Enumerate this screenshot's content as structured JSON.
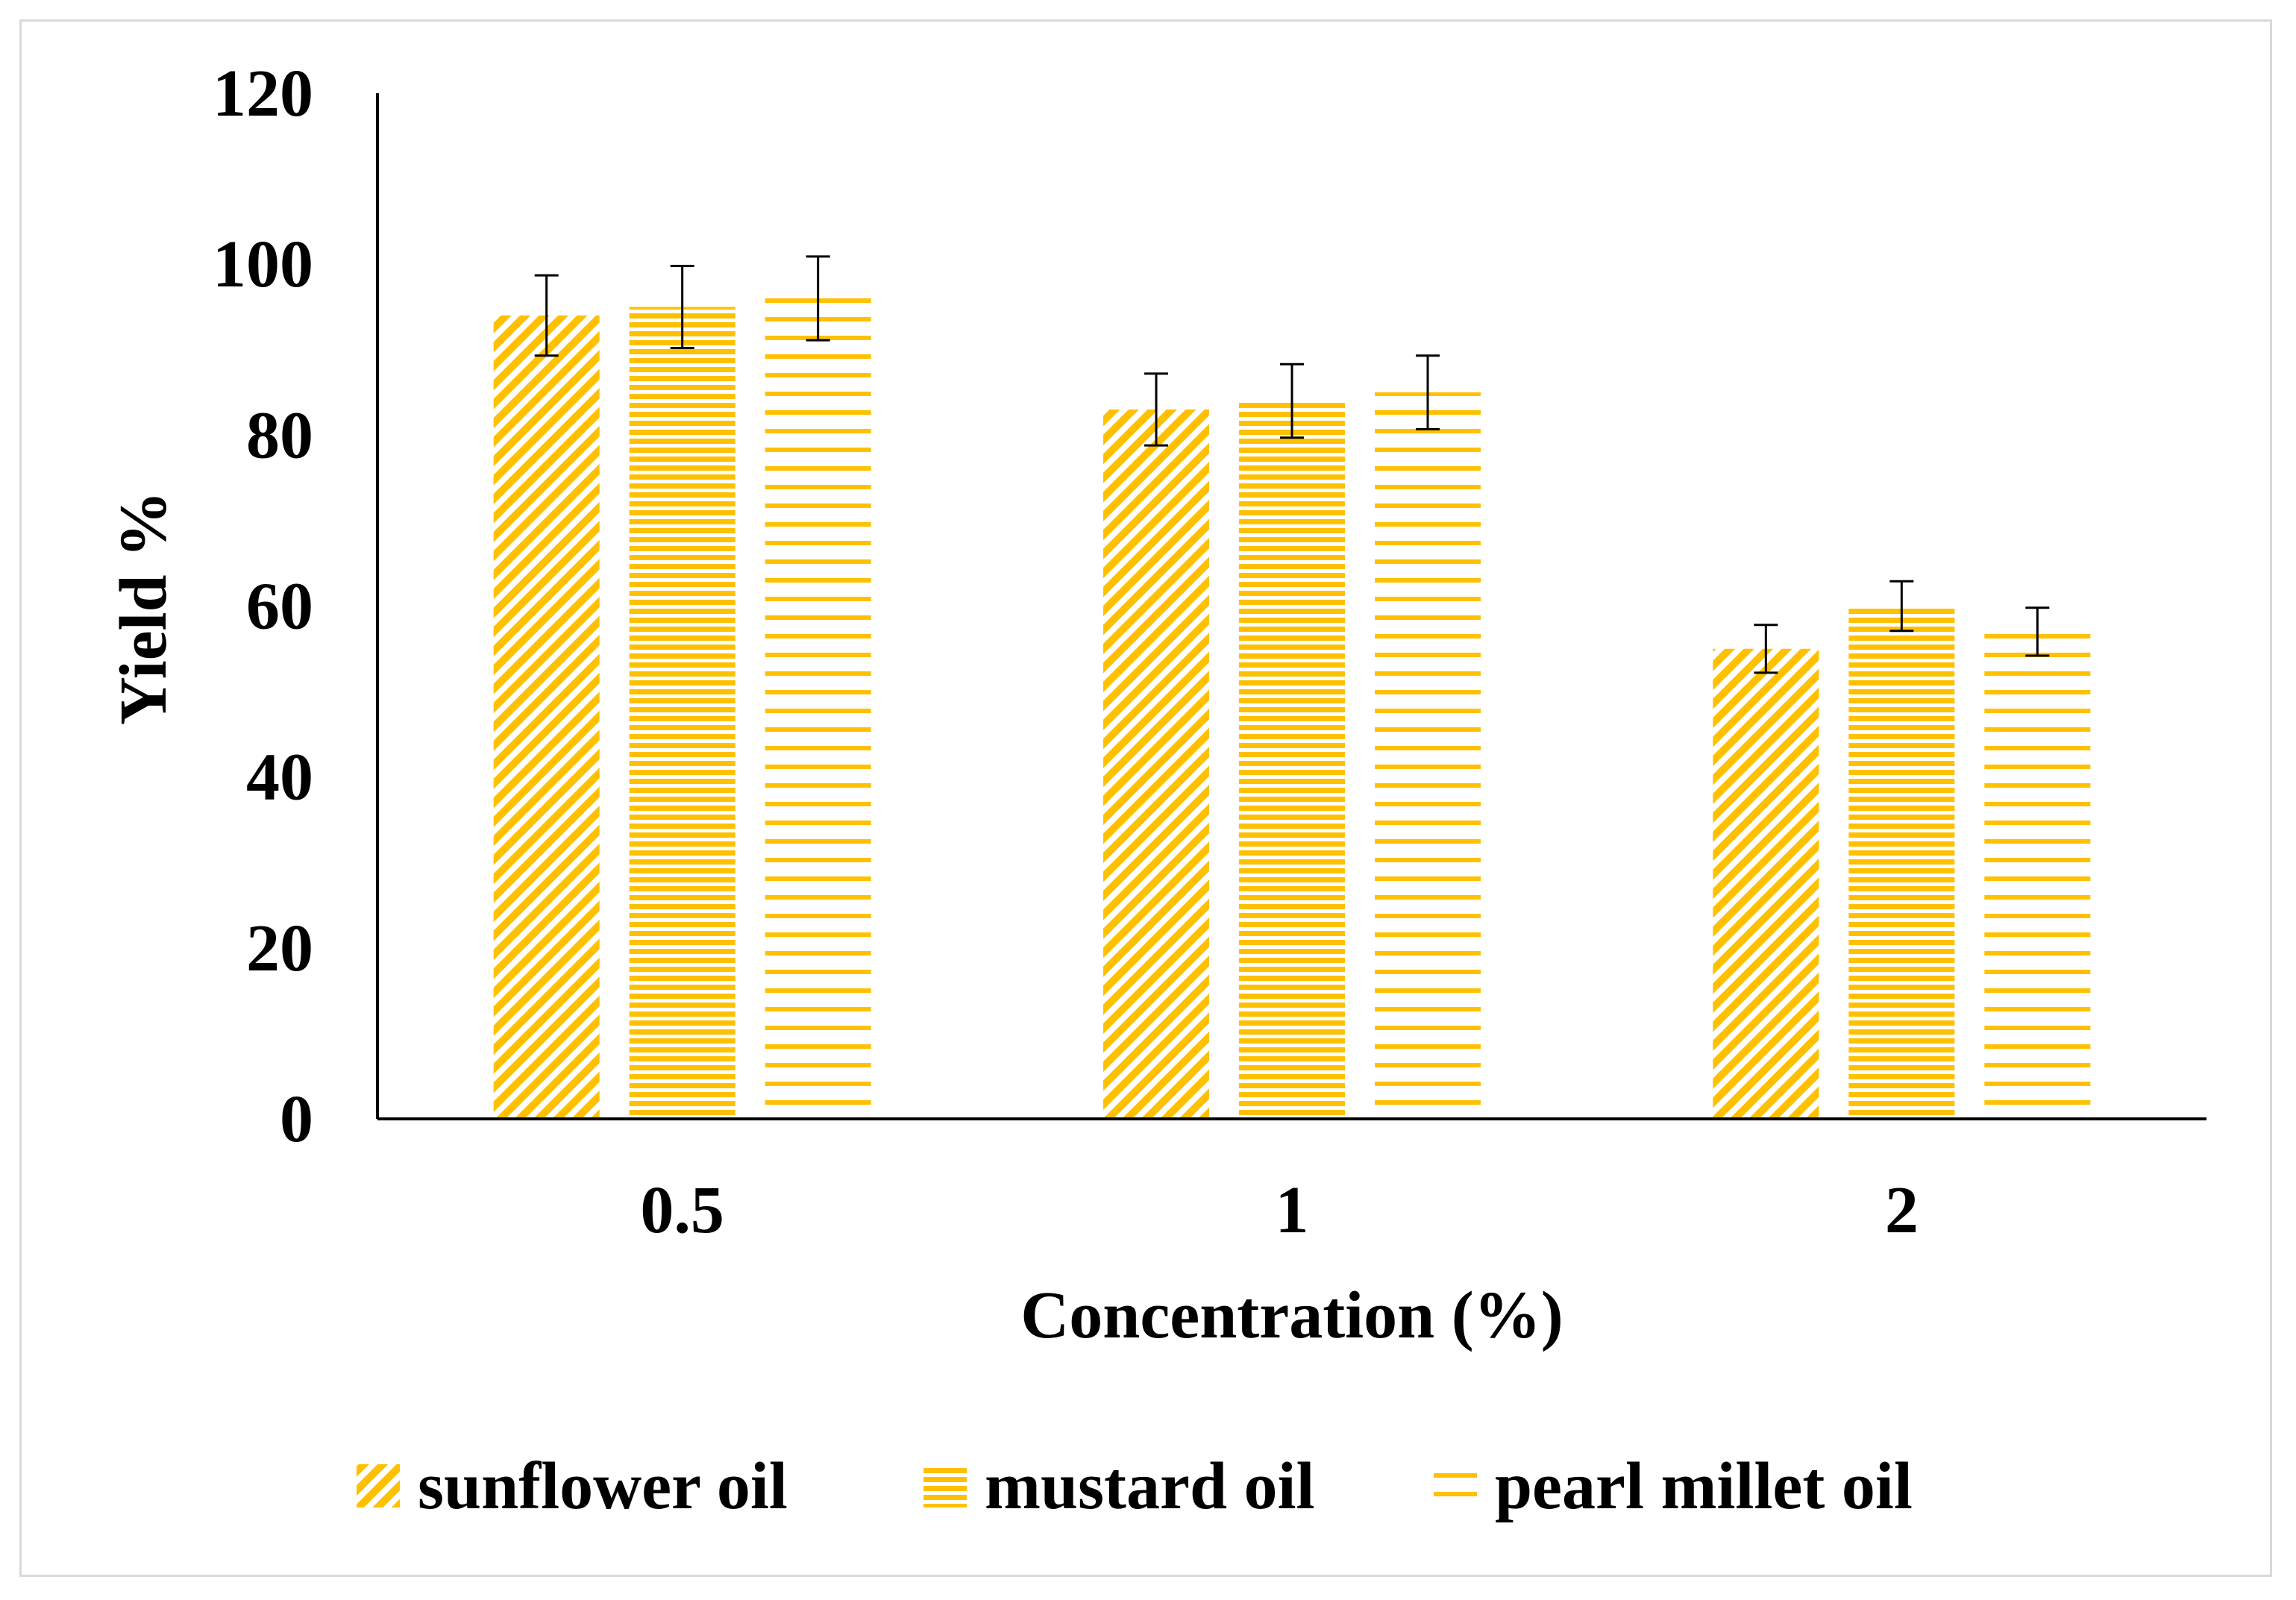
{
  "chart_data": {
    "type": "bar",
    "categories": [
      "0.5",
      "1",
      "2"
    ],
    "series": [
      {
        "name": "sunflower oil",
        "values": [
          94,
          83,
          55
        ],
        "errors": [
          4.7,
          4.2,
          2.8
        ],
        "pattern": "diagonal"
      },
      {
        "name": "mustard oil",
        "values": [
          95,
          84,
          60
        ],
        "errors": [
          4.8,
          4.3,
          2.9
        ],
        "pattern": "dense-horizontal"
      },
      {
        "name": "pearl millet oil",
        "values": [
          96,
          85,
          57
        ],
        "errors": [
          4.9,
          4.3,
          2.8
        ],
        "pattern": "wide-horizontal"
      }
    ],
    "title": "",
    "xlabel": "Concentration (%)",
    "ylabel": "Yield %",
    "ylim": [
      0,
      120
    ],
    "yticks": [
      "0",
      "20",
      "40",
      "60",
      "80",
      "100",
      "120"
    ],
    "grid": false,
    "legend_position": "bottom",
    "colors": {
      "bar": "#FFC000",
      "axis": "#000000",
      "error_bar": "#000000"
    }
  }
}
